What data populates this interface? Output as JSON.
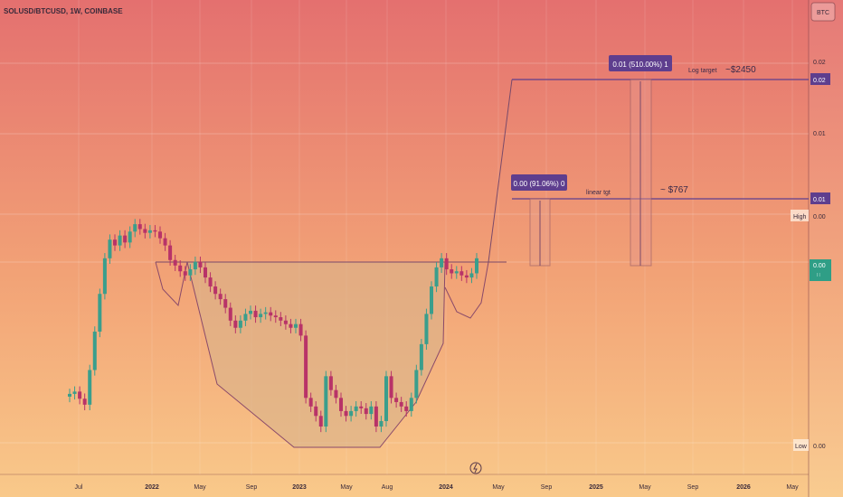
{
  "header": {
    "symbol_line": "SOLUSD/BTCUSD, 1W, COINBASE"
  },
  "currency": "BTC",
  "colors": {
    "bg_top": "#e4706f",
    "bg_mid": "#f2a276",
    "bg_bottom": "#f9c98a",
    "up_candle": "#3a9e8c",
    "down_candle": "#b83368",
    "pattern_fill": "#d9b28a",
    "pattern_stroke": "#8a4a6a",
    "target_line": "#5e3e8e",
    "label_box": "#5e3e8e",
    "axis_box_up": "#2f9e86"
  },
  "annotations": {
    "log_box": "0.01 (510.00%) 1",
    "linear_box": "0.00 (91.06%) 0",
    "log_target_label": "Log target",
    "log_target_value": "~$2450",
    "linear_label": "linear tgt",
    "linear_value": "~ $767"
  },
  "price_axis": {
    "ticks": [
      "0.02",
      "0.01"
    ],
    "box_high_target": "0.02",
    "box_linear_target": "0.01",
    "high_label": "High",
    "high_value": "0.00",
    "current_value": "0.00",
    "low_label": "Low",
    "low_value": "0.00"
  },
  "time_axis": {
    "labels": [
      {
        "text": "Jul",
        "bold": false
      },
      {
        "text": "2022",
        "bold": true
      },
      {
        "text": "May",
        "bold": false
      },
      {
        "text": "Sep",
        "bold": false
      },
      {
        "text": "2023",
        "bold": true
      },
      {
        "text": "May",
        "bold": false
      },
      {
        "text": "Aug",
        "bold": false
      },
      {
        "text": "2024",
        "bold": true
      },
      {
        "text": "May",
        "bold": false
      },
      {
        "text": "Sep",
        "bold": false
      },
      {
        "text": "2025",
        "bold": true
      },
      {
        "text": "May",
        "bold": false
      },
      {
        "text": "Sep",
        "bold": false
      },
      {
        "text": "2026",
        "bold": true
      },
      {
        "text": "May",
        "bold": false
      }
    ]
  },
  "chart_data": {
    "type": "candlestick",
    "title": "SOLUSD/BTCUSD, 1W, COINBASE",
    "y_scale": "log",
    "pattern": "cup and handle",
    "close_series_approx": [
      0.00115,
      0.00118,
      0.00109,
      0.00102,
      0.0015,
      0.0023,
      0.0035,
      0.0052,
      0.0064,
      0.006,
      0.0067,
      0.0062,
      0.007,
      0.0076,
      0.0072,
      0.0069,
      0.0071,
      0.007,
      0.0065,
      0.006,
      0.0051,
      0.0048,
      0.0045,
      0.0043,
      0.0046,
      0.005,
      0.0047,
      0.0042,
      0.0038,
      0.0035,
      0.0033,
      0.003,
      0.0026,
      0.0024,
      0.0026,
      0.0028,
      0.0029,
      0.0027,
      0.0028,
      0.00285,
      0.00275,
      0.0027,
      0.0026,
      0.0025,
      0.0024,
      0.0025,
      0.0022,
      0.0011,
      0.001,
      0.0009,
      0.0008,
      0.0014,
      0.0012,
      0.0011,
      0.00095,
      0.0009,
      0.00095,
      0.001,
      0.00098,
      0.00092,
      0.001,
      0.0008,
      0.00085,
      0.0014,
      0.0011,
      0.00105,
      0.001,
      0.00095,
      0.0011,
      0.0015,
      0.002,
      0.0028,
      0.0038,
      0.0047,
      0.0052,
      0.0046,
      0.0044,
      0.0045,
      0.0043,
      0.0042,
      0.0044,
      0.0052
    ]
  }
}
